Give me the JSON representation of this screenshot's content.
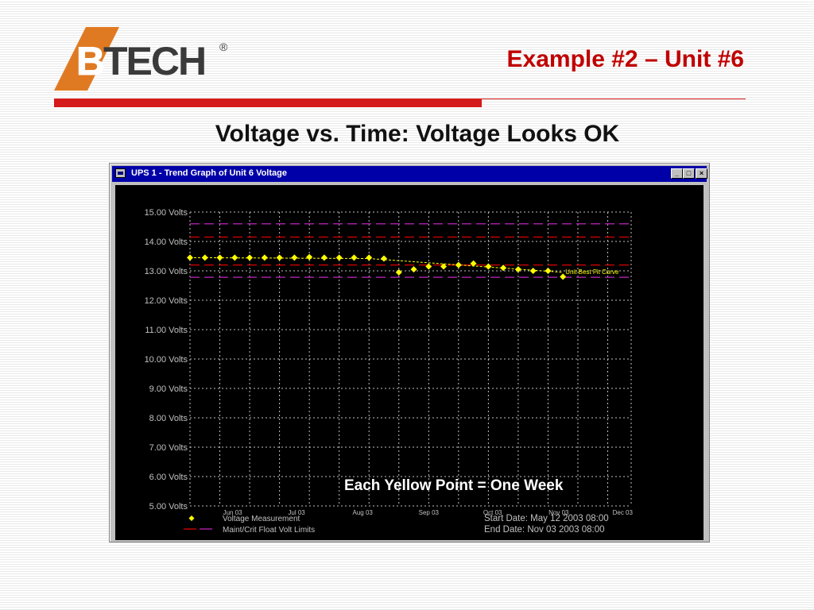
{
  "brand": {
    "logo_text": "BTECH",
    "registered_mark": "®"
  },
  "slide": {
    "title": "Example #2 – Unit #6",
    "subtitle": "Voltage vs. Time: Voltage Looks OK"
  },
  "window": {
    "title": "UPS 1 - Trend Graph of Unit 6 Voltage",
    "buttons": {
      "minimize": "_",
      "maximize": "□",
      "close": "×"
    }
  },
  "annotation": "Each Yellow Point = One Week",
  "colors": {
    "points": "#ffff00",
    "fit_curve": "#ffff00",
    "maint_limit": "#c00000",
    "crit_limit": "#a020a0",
    "grid": "#c0c0c0",
    "axis_text": "#c0c0c0"
  },
  "chart_data": {
    "type": "scatter",
    "title": "UPS 1 - Trend Graph of Unit 6 Voltage",
    "ylim": [
      5,
      15
    ],
    "y_ticks": [
      5,
      6,
      7,
      8,
      9,
      10,
      11,
      12,
      13,
      14,
      15
    ],
    "y_tick_labels": [
      "5.00 Volts",
      "6.00 Volts",
      "7.00 Volts",
      "8.00 Volts",
      "9.00 Volts",
      "10.00 Volts",
      "11.00 Volts",
      "12.00 Volts",
      "13.00 Volts",
      "14.00 Volts",
      "15.00 Volts"
    ],
    "x_range": [
      "2003-05-12",
      "2003-12-05"
    ],
    "x_ticks": [
      "2003-06-01",
      "2003-07-01",
      "2003-08-01",
      "2003-09-01",
      "2003-10-01",
      "2003-11-01",
      "2003-12-01"
    ],
    "x_tick_labels": [
      "Jun 03",
      "Jul 03",
      "Aug 03",
      "Sep 03",
      "Oct 03",
      "Nov 03",
      "Dec 03"
    ],
    "grid": true,
    "series": [
      {
        "name": "Voltage Measurement",
        "points": [
          [
            "2003-05-12",
            13.45
          ],
          [
            "2003-05-19",
            13.45
          ],
          [
            "2003-05-26",
            13.45
          ],
          [
            "2003-06-02",
            13.45
          ],
          [
            "2003-06-09",
            13.45
          ],
          [
            "2003-06-16",
            13.45
          ],
          [
            "2003-06-23",
            13.45
          ],
          [
            "2003-06-30",
            13.45
          ],
          [
            "2003-07-07",
            13.47
          ],
          [
            "2003-07-14",
            13.45
          ],
          [
            "2003-07-21",
            13.45
          ],
          [
            "2003-07-28",
            13.45
          ],
          [
            "2003-08-04",
            13.45
          ],
          [
            "2003-08-11",
            13.42
          ],
          [
            "2003-08-18",
            12.95
          ],
          [
            "2003-08-25",
            13.05
          ],
          [
            "2003-09-01",
            13.15
          ],
          [
            "2003-09-08",
            13.15
          ],
          [
            "2003-09-15",
            13.2
          ],
          [
            "2003-09-22",
            13.25
          ],
          [
            "2003-09-29",
            13.15
          ],
          [
            "2003-10-06",
            13.1
          ],
          [
            "2003-10-13",
            13.05
          ],
          [
            "2003-10-20",
            13.0
          ],
          [
            "2003-10-27",
            13.0
          ],
          [
            "2003-11-03",
            12.8
          ]
        ]
      },
      {
        "name": "Unit Best Fit Curve",
        "line": [
          [
            "2003-05-12",
            13.45
          ],
          [
            "2003-08-04",
            13.42
          ],
          [
            "2003-11-03",
            12.95
          ]
        ]
      },
      {
        "name": "Maint/Crit Float Volt Limits",
        "limits": [
          14.6,
          14.15,
          13.2,
          12.78
        ]
      }
    ],
    "legend": {
      "placement": "bottom-left",
      "entries": [
        "Voltage Measurement",
        "Maint/Crit Float Volt Limits"
      ]
    },
    "info": {
      "start": "Start Date: May 12 2003  08:00",
      "end": "End Date: Nov 03 2003  08:00"
    }
  }
}
